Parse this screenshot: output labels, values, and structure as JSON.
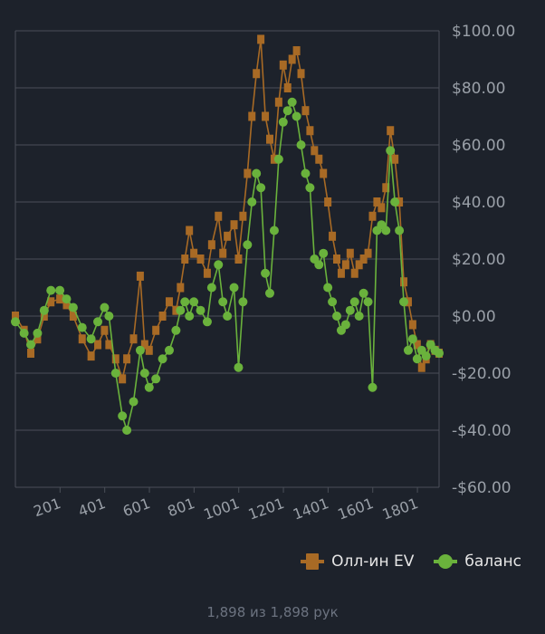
{
  "colors": {
    "background": "#1d222b",
    "grid": "#4a4f58",
    "allin_ev": "#a86a25",
    "balance": "#6ab23c",
    "tick_label": "#9aa0a8",
    "footer": "#6c7380"
  },
  "legend": {
    "allin_label": "Олл-ин EV",
    "balance_label": "баланс"
  },
  "footer": {
    "hands_text": "1,898 из 1,898 рук"
  },
  "chart_data": {
    "type": "line",
    "grid": true,
    "legend_position": "bottom-right",
    "y_axis_side": "right",
    "xlim": [
      1,
      1898
    ],
    "ylim": [
      -60,
      100
    ],
    "x_ticks": [
      201,
      401,
      601,
      801,
      1001,
      1201,
      1401,
      1601,
      1801
    ],
    "y_ticks": [
      100,
      80,
      60,
      40,
      20,
      0,
      -20,
      -40,
      -60
    ],
    "y_tick_labels": [
      "$100.00",
      "$80.00",
      "$60.00",
      "$40.00",
      "$20.00",
      "$0.00",
      "-$20.00",
      "-$40.00",
      "-$60.00"
    ],
    "series": [
      {
        "name": "Олл-ин EV",
        "marker": "square",
        "points": [
          [
            1,
            0
          ],
          [
            40,
            -5
          ],
          [
            70,
            -13
          ],
          [
            100,
            -8
          ],
          [
            130,
            0
          ],
          [
            160,
            5
          ],
          [
            200,
            6
          ],
          [
            230,
            4
          ],
          [
            260,
            0
          ],
          [
            300,
            -8
          ],
          [
            340,
            -14
          ],
          [
            370,
            -10
          ],
          [
            400,
            -5
          ],
          [
            420,
            -10
          ],
          [
            450,
            -15
          ],
          [
            480,
            -22
          ],
          [
            500,
            -15
          ],
          [
            530,
            -8
          ],
          [
            560,
            14
          ],
          [
            580,
            -10
          ],
          [
            600,
            -12
          ],
          [
            630,
            -5
          ],
          [
            660,
            0
          ],
          [
            690,
            5
          ],
          [
            720,
            2
          ],
          [
            740,
            10
          ],
          [
            760,
            20
          ],
          [
            780,
            30
          ],
          [
            800,
            22
          ],
          [
            830,
            20
          ],
          [
            860,
            15
          ],
          [
            880,
            25
          ],
          [
            910,
            35
          ],
          [
            930,
            22
          ],
          [
            950,
            28
          ],
          [
            980,
            32
          ],
          [
            1000,
            20
          ],
          [
            1020,
            35
          ],
          [
            1040,
            50
          ],
          [
            1060,
            70
          ],
          [
            1080,
            85
          ],
          [
            1100,
            97
          ],
          [
            1120,
            70
          ],
          [
            1140,
            62
          ],
          [
            1160,
            55
          ],
          [
            1180,
            75
          ],
          [
            1200,
            88
          ],
          [
            1220,
            80
          ],
          [
            1240,
            90
          ],
          [
            1260,
            93
          ],
          [
            1280,
            85
          ],
          [
            1300,
            72
          ],
          [
            1320,
            65
          ],
          [
            1340,
            58
          ],
          [
            1360,
            55
          ],
          [
            1380,
            50
          ],
          [
            1400,
            40
          ],
          [
            1420,
            28
          ],
          [
            1440,
            20
          ],
          [
            1460,
            15
          ],
          [
            1480,
            18
          ],
          [
            1500,
            22
          ],
          [
            1520,
            15
          ],
          [
            1540,
            18
          ],
          [
            1560,
            20
          ],
          [
            1580,
            22
          ],
          [
            1600,
            35
          ],
          [
            1620,
            40
          ],
          [
            1640,
            38
          ],
          [
            1660,
            45
          ],
          [
            1680,
            65
          ],
          [
            1700,
            55
          ],
          [
            1720,
            40
          ],
          [
            1740,
            12
          ],
          [
            1760,
            5
          ],
          [
            1780,
            -3
          ],
          [
            1800,
            -10
          ],
          [
            1820,
            -18
          ],
          [
            1840,
            -15
          ],
          [
            1860,
            -10
          ],
          [
            1880,
            -12
          ],
          [
            1898,
            -13
          ]
        ]
      },
      {
        "name": "баланс",
        "marker": "circle",
        "points": [
          [
            1,
            -2
          ],
          [
            40,
            -6
          ],
          [
            70,
            -10
          ],
          [
            100,
            -6
          ],
          [
            130,
            2
          ],
          [
            160,
            9
          ],
          [
            200,
            9
          ],
          [
            230,
            6
          ],
          [
            260,
            3
          ],
          [
            300,
            -4
          ],
          [
            340,
            -8
          ],
          [
            370,
            -2
          ],
          [
            400,
            3
          ],
          [
            420,
            0
          ],
          [
            450,
            -20
          ],
          [
            480,
            -35
          ],
          [
            500,
            -40
          ],
          [
            530,
            -30
          ],
          [
            560,
            -12
          ],
          [
            580,
            -20
          ],
          [
            600,
            -25
          ],
          [
            630,
            -22
          ],
          [
            660,
            -15
          ],
          [
            690,
            -12
          ],
          [
            720,
            -5
          ],
          [
            740,
            2
          ],
          [
            760,
            5
          ],
          [
            780,
            0
          ],
          [
            800,
            5
          ],
          [
            830,
            2
          ],
          [
            860,
            -2
          ],
          [
            880,
            10
          ],
          [
            910,
            18
          ],
          [
            930,
            5
          ],
          [
            950,
            0
          ],
          [
            980,
            10
          ],
          [
            1000,
            -18
          ],
          [
            1020,
            5
          ],
          [
            1040,
            25
          ],
          [
            1060,
            40
          ],
          [
            1080,
            50
          ],
          [
            1100,
            45
          ],
          [
            1120,
            15
          ],
          [
            1140,
            8
          ],
          [
            1160,
            30
          ],
          [
            1180,
            55
          ],
          [
            1200,
            68
          ],
          [
            1220,
            72
          ],
          [
            1240,
            75
          ],
          [
            1260,
            70
          ],
          [
            1280,
            60
          ],
          [
            1300,
            50
          ],
          [
            1320,
            45
          ],
          [
            1340,
            20
          ],
          [
            1360,
            18
          ],
          [
            1380,
            22
          ],
          [
            1400,
            10
          ],
          [
            1420,
            5
          ],
          [
            1440,
            0
          ],
          [
            1460,
            -5
          ],
          [
            1480,
            -3
          ],
          [
            1500,
            2
          ],
          [
            1520,
            5
          ],
          [
            1540,
            0
          ],
          [
            1560,
            8
          ],
          [
            1580,
            5
          ],
          [
            1600,
            -25
          ],
          [
            1620,
            30
          ],
          [
            1640,
            32
          ],
          [
            1660,
            30
          ],
          [
            1680,
            58
          ],
          [
            1700,
            40
          ],
          [
            1720,
            30
          ],
          [
            1740,
            5
          ],
          [
            1760,
            -12
          ],
          [
            1780,
            -8
          ],
          [
            1800,
            -15
          ],
          [
            1820,
            -12
          ],
          [
            1840,
            -14
          ],
          [
            1860,
            -10
          ],
          [
            1880,
            -12
          ],
          [
            1898,
            -13
          ]
        ]
      }
    ]
  }
}
